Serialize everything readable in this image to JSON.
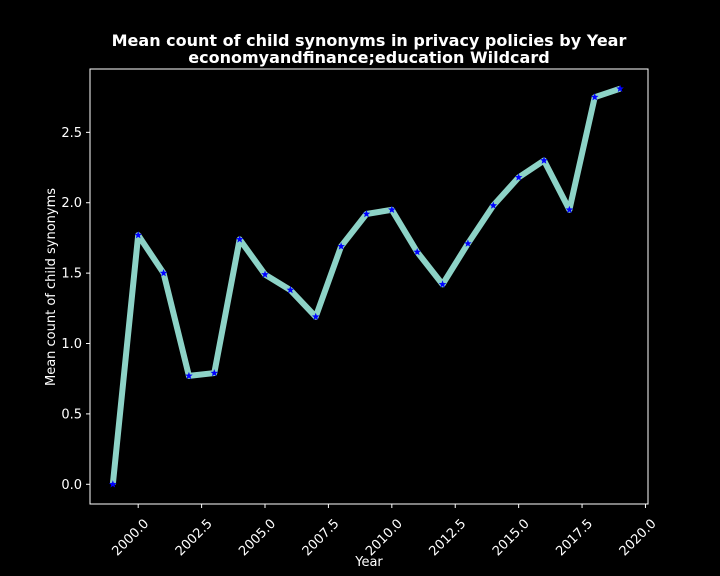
{
  "chart_data": {
    "type": "line",
    "title": "Mean count of child synonyms in privacy policies by Year",
    "subtitle": "economyandfinance;education Wildcard",
    "xlabel": "Year",
    "ylabel": "Mean count of child synonyms",
    "xlim": [
      1998.1,
      2020.1
    ],
    "ylim": [
      -0.14,
      2.95
    ],
    "x_ticks": [
      2000.0,
      2002.5,
      2005.0,
      2007.5,
      2010.0,
      2012.5,
      2015.0,
      2017.5,
      2020.0
    ],
    "x_tick_labels": [
      "2000.0",
      "2002.5",
      "2005.0",
      "2007.5",
      "2010.0",
      "2012.5",
      "2015.0",
      "2017.5",
      "2020.0"
    ],
    "y_ticks": [
      0.0,
      0.5,
      1.0,
      1.5,
      2.0,
      2.5
    ],
    "y_tick_labels": [
      "0.0",
      "0.5",
      "1.0",
      "1.5",
      "2.0",
      "2.5"
    ],
    "grid": false,
    "background": "#000000",
    "line_color": "#8dd3c7",
    "marker_color": "#0000ff",
    "marker": "star",
    "series": [
      {
        "x": [
          1999,
          2000,
          2001,
          2002,
          2003,
          2004,
          2005,
          2006,
          2007,
          2008,
          2009,
          2010,
          2011,
          2012,
          2013,
          2014,
          2015,
          2016,
          2017,
          2018,
          2019
        ],
        "values": [
          0.0,
          1.77,
          1.5,
          0.77,
          0.79,
          1.74,
          1.49,
          1.38,
          1.19,
          1.69,
          1.92,
          1.95,
          1.65,
          1.42,
          1.71,
          1.98,
          2.18,
          2.3,
          1.95,
          2.75,
          2.81
        ]
      }
    ]
  }
}
